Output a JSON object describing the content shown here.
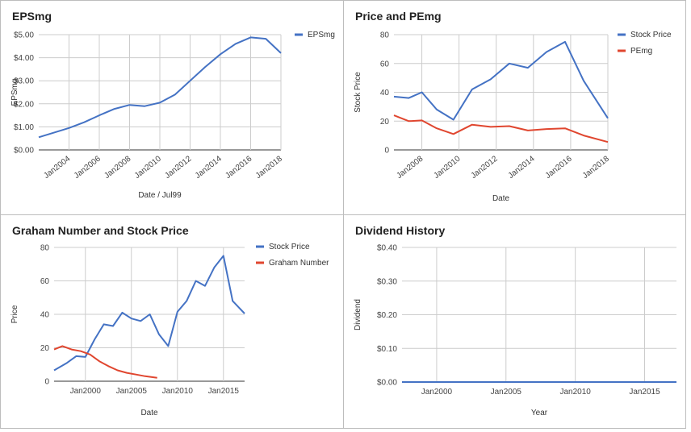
{
  "colors": {
    "blue": "#4472c4",
    "red": "#e0462f",
    "grid": "#cccccc",
    "axis": "#333333"
  },
  "chart_data": [
    {
      "type": "line",
      "title": "EPSmg",
      "xlabel": "Date / Jul99",
      "ylabel": "EPSmg",
      "x_tick_labels": [
        "Jan2004",
        "Jan2006",
        "Jan2008",
        "Jan2010",
        "Jan2012",
        "Jan2014",
        "Jan2016",
        "Jan2018"
      ],
      "x_tick_values": [
        2004,
        2006,
        2008,
        2010,
        2012,
        2014,
        2016,
        2018
      ],
      "y_tick_labels": [
        "$0.00",
        "$1.00",
        "$2.00",
        "$3.00",
        "$4.00",
        "$5.00"
      ],
      "y_tick_values": [
        0,
        1,
        2,
        3,
        4,
        5
      ],
      "xlim": [
        2002,
        2018
      ],
      "ylim": [
        0,
        5
      ],
      "legend_position": "right",
      "series": [
        {
          "name": "EPSmg",
          "color": "#4472c4",
          "x": [
            2002,
            2003,
            2004,
            2005,
            2006,
            2007,
            2008,
            2009,
            2010,
            2011,
            2012,
            2013,
            2014,
            2015,
            2016,
            2017,
            2018
          ],
          "y": [
            0.55,
            0.75,
            0.95,
            1.2,
            1.5,
            1.78,
            1.95,
            1.9,
            2.05,
            2.4,
            3.0,
            3.6,
            4.15,
            4.6,
            4.88,
            4.82,
            4.2
          ]
        }
      ]
    },
    {
      "type": "line",
      "title": "Price and PEmg",
      "xlabel": "Date",
      "ylabel": "Stock Price",
      "x_tick_labels": [
        "Jan2008",
        "Jan2010",
        "Jan2012",
        "Jan2014",
        "Jan2016",
        "Jan2018"
      ],
      "x_tick_values": [
        2008,
        2010,
        2012,
        2014,
        2016,
        2018
      ],
      "y_tick_labels": [
        "0",
        "20",
        "40",
        "60",
        "80"
      ],
      "y_tick_values": [
        0,
        20,
        40,
        60,
        80
      ],
      "xlim": [
        2006.5,
        2018
      ],
      "ylim": [
        0,
        80
      ],
      "legend_position": "right",
      "series": [
        {
          "name": "Stock Price",
          "color": "#4472c4",
          "x": [
            2006.5,
            2007.3,
            2008,
            2008.8,
            2009.7,
            2010.7,
            2011.7,
            2012.7,
            2013.7,
            2014.7,
            2015.7,
            2016.7,
            2018
          ],
          "y": [
            37,
            36,
            40,
            28,
            21,
            42,
            49,
            60,
            57,
            68,
            75,
            48,
            22
          ]
        },
        {
          "name": "PEmg",
          "color": "#e0462f",
          "x": [
            2006.5,
            2007.3,
            2008,
            2008.8,
            2009.7,
            2010.7,
            2011.7,
            2012.7,
            2013.7,
            2014.7,
            2015.7,
            2016.7,
            2018
          ],
          "y": [
            24,
            20,
            20.5,
            15,
            11,
            17.5,
            16,
            16.5,
            13.5,
            14.5,
            15,
            10,
            5.5
          ]
        }
      ]
    },
    {
      "type": "line",
      "title": "Graham Number and Stock Price",
      "xlabel": "Date",
      "ylabel": "Price",
      "x_tick_labels": [
        "Jan2000",
        "Jan2005",
        "Jan2010",
        "Jan2015"
      ],
      "x_tick_values": [
        2000,
        2005,
        2010,
        2015
      ],
      "y_tick_labels": [
        "0",
        "20",
        "40",
        "60",
        "80"
      ],
      "y_tick_values": [
        0,
        20,
        40,
        60,
        80
      ],
      "xlim": [
        1996.6,
        2017.3
      ],
      "ylim": [
        0,
        80
      ],
      "legend_position": "right",
      "series": [
        {
          "name": "Stock Price",
          "color": "#4472c4",
          "x": [
            1996.6,
            1998,
            1999,
            2000,
            2001,
            2002,
            2003,
            2004,
            2005,
            2006,
            2007,
            2008,
            2009,
            2010,
            2011,
            2012,
            2013,
            2014,
            2015,
            2016,
            2017.3
          ],
          "y": [
            6.5,
            11,
            15,
            14.5,
            25,
            34,
            33,
            41,
            37.5,
            36,
            40,
            28,
            21,
            41.5,
            48,
            60,
            57,
            68,
            75,
            48,
            40.5
          ]
        },
        {
          "name": "Graham Number",
          "color": "#e0462f",
          "x": [
            1996.6,
            1997.5,
            1998.5,
            1999.5,
            2000.5,
            2001.5,
            2002.5,
            2003.5,
            2004.5,
            2005.5,
            2006.5,
            2007.8
          ],
          "y": [
            19,
            21,
            19,
            18,
            16,
            12,
            9,
            6.5,
            5,
            4,
            3,
            2
          ]
        }
      ]
    },
    {
      "type": "line",
      "title": "Dividend History",
      "xlabel": "Year",
      "ylabel": "Dividend",
      "x_tick_labels": [
        "Jan2000",
        "Jan2005",
        "Jan2010",
        "Jan2015"
      ],
      "x_tick_values": [
        2000,
        2005,
        2010,
        2015
      ],
      "y_tick_labels": [
        "$0.00",
        "$0.10",
        "$0.20",
        "$0.30",
        "$0.40"
      ],
      "y_tick_values": [
        0,
        0.1,
        0.2,
        0.3,
        0.4
      ],
      "xlim": [
        1997.5,
        2017.3
      ],
      "ylim": [
        0,
        0.4
      ],
      "series": [
        {
          "color": "#4472c4",
          "x": [
            1997.5,
            2017.3
          ],
          "y": [
            0,
            0
          ]
        }
      ]
    }
  ]
}
